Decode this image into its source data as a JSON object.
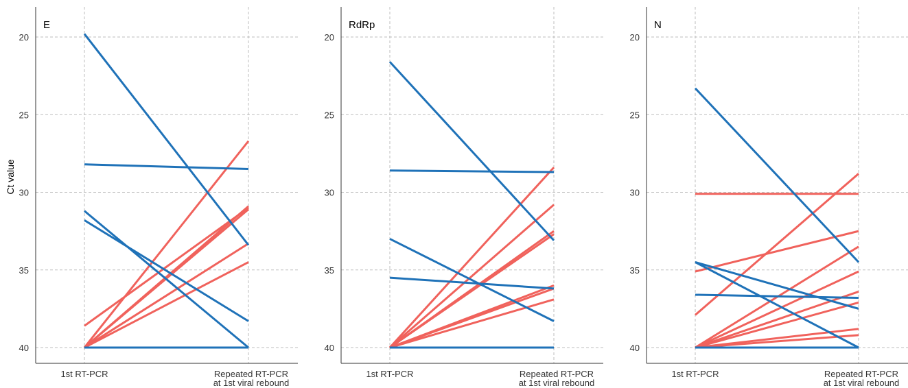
{
  "chart_data": [
    {
      "type": "line",
      "title": "E",
      "ylabel": "Ct value",
      "categories": [
        "1st RT-PCR",
        "Repeated RT-PCR\nat 1st viral rebound"
      ],
      "yticks": [
        20,
        25,
        30,
        35,
        40
      ],
      "ylim": [
        18,
        41
      ],
      "y_reversed": true,
      "grid": true,
      "series": [
        {
          "group": "blue",
          "values": [
            19.8,
            33.4
          ]
        },
        {
          "group": "blue",
          "values": [
            28.2,
            28.5
          ]
        },
        {
          "group": "blue",
          "values": [
            31.2,
            40.0
          ]
        },
        {
          "group": "blue",
          "values": [
            31.8,
            38.3
          ]
        },
        {
          "group": "blue",
          "values": [
            40.0,
            40.0
          ]
        },
        {
          "group": "red",
          "values": [
            38.6,
            31.0
          ]
        },
        {
          "group": "red",
          "values": [
            40.0,
            26.7
          ]
        },
        {
          "group": "red",
          "values": [
            40.0,
            30.9
          ]
        },
        {
          "group": "red",
          "values": [
            40.0,
            31.1
          ]
        },
        {
          "group": "red",
          "values": [
            40.0,
            33.3
          ]
        },
        {
          "group": "red",
          "values": [
            40.0,
            34.5
          ]
        }
      ]
    },
    {
      "type": "line",
      "title": "RdRp",
      "ylabel": "",
      "categories": [
        "1st RT-PCR",
        "Repeated RT-PCR\nat 1st viral rebound"
      ],
      "yticks": [
        20,
        25,
        30,
        35,
        40
      ],
      "ylim": [
        18,
        41
      ],
      "y_reversed": true,
      "grid": true,
      "series": [
        {
          "group": "blue",
          "values": [
            21.6,
            33.1
          ]
        },
        {
          "group": "blue",
          "values": [
            28.6,
            28.7
          ]
        },
        {
          "group": "blue",
          "values": [
            33.0,
            38.3
          ]
        },
        {
          "group": "blue",
          "values": [
            35.5,
            36.2
          ]
        },
        {
          "group": "blue",
          "values": [
            40.0,
            40.0
          ]
        },
        {
          "group": "red",
          "values": [
            40.0,
            28.4
          ]
        },
        {
          "group": "red",
          "values": [
            40.0,
            30.8
          ]
        },
        {
          "group": "red",
          "values": [
            40.0,
            32.5
          ]
        },
        {
          "group": "red",
          "values": [
            40.0,
            32.7
          ]
        },
        {
          "group": "red",
          "values": [
            40.0,
            36.0
          ]
        },
        {
          "group": "red",
          "values": [
            40.0,
            36.2
          ]
        },
        {
          "group": "red",
          "values": [
            40.0,
            36.9
          ]
        }
      ]
    },
    {
      "type": "line",
      "title": "N",
      "ylabel": "",
      "categories": [
        "1st RT-PCR",
        "Repeated RT-PCR\nat 1st viral rebound"
      ],
      "yticks": [
        20,
        25,
        30,
        35,
        40
      ],
      "ylim": [
        18,
        41
      ],
      "y_reversed": true,
      "grid": true,
      "series": [
        {
          "group": "blue",
          "values": [
            23.3,
            34.5
          ]
        },
        {
          "group": "blue",
          "values": [
            34.5,
            37.5
          ]
        },
        {
          "group": "blue",
          "values": [
            34.5,
            40.0
          ]
        },
        {
          "group": "blue",
          "values": [
            36.6,
            36.8
          ]
        },
        {
          "group": "blue",
          "values": [
            40.0,
            40.0
          ]
        },
        {
          "group": "red",
          "values": [
            30.1,
            30.1
          ]
        },
        {
          "group": "red",
          "values": [
            35.1,
            32.5
          ]
        },
        {
          "group": "red",
          "values": [
            37.9,
            28.8
          ]
        },
        {
          "group": "red",
          "values": [
            40.0,
            33.5
          ]
        },
        {
          "group": "red",
          "values": [
            40.0,
            35.1
          ]
        },
        {
          "group": "red",
          "values": [
            40.0,
            36.4
          ]
        },
        {
          "group": "red",
          "values": [
            40.0,
            37.1
          ]
        },
        {
          "group": "red",
          "values": [
            40.0,
            38.8
          ]
        },
        {
          "group": "red",
          "values": [
            40.0,
            39.2
          ]
        }
      ]
    }
  ],
  "colors": {
    "blue": "#1f72b8",
    "red": "#f0625c",
    "grid": "#bdbdbd",
    "axis": "#333333"
  }
}
